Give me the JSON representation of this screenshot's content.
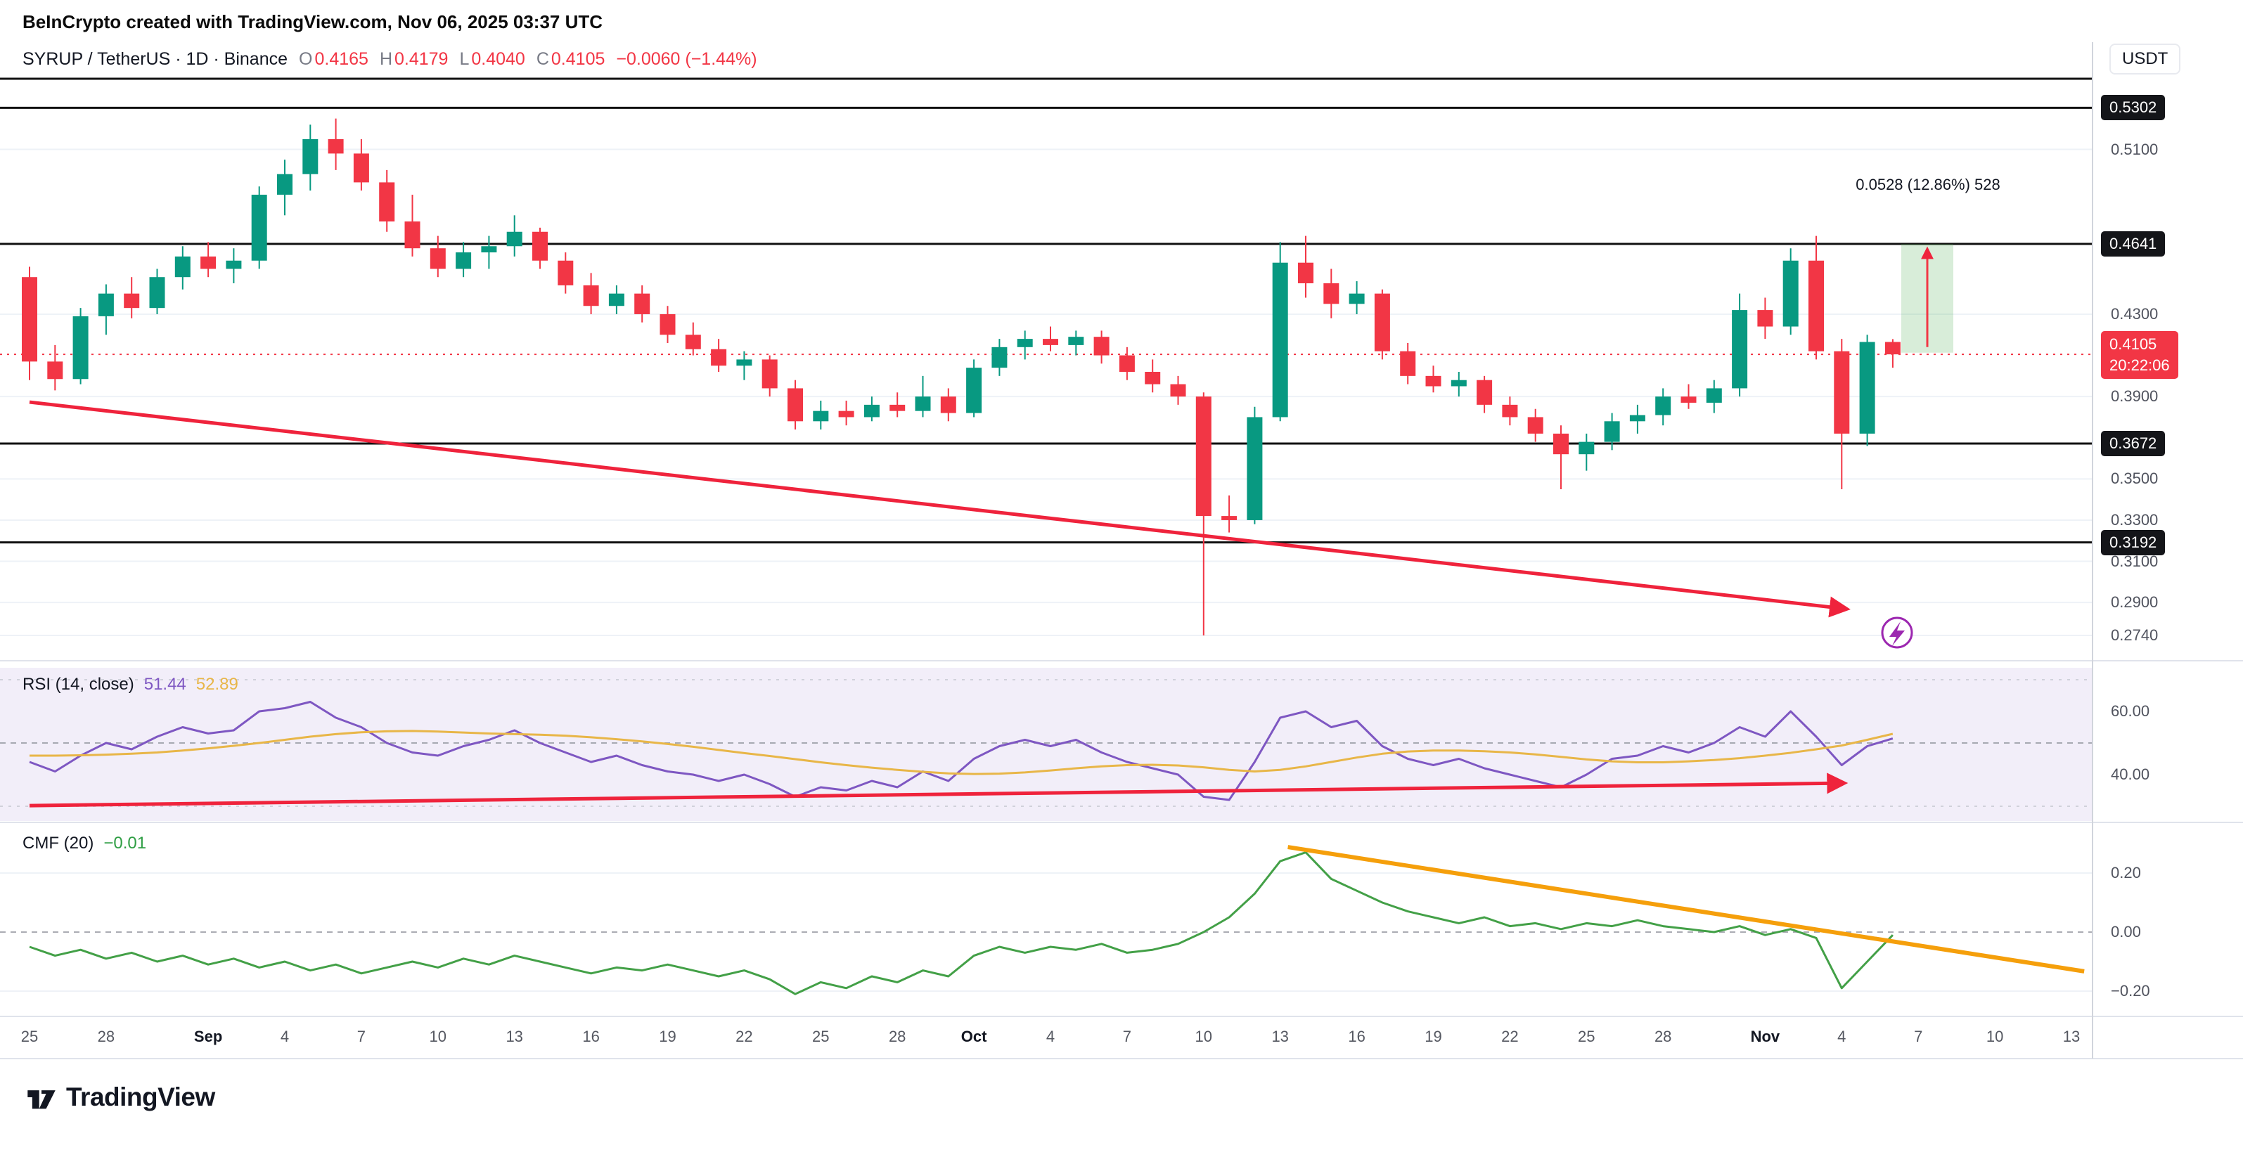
{
  "attribution": "BeInCrypto created with TradingView.com, Nov 06, 2025 03:37 UTC",
  "symbol_bar": {
    "title": "SYRUP / TetherUS · 1D · Binance",
    "o_label": "O",
    "o": "0.4165",
    "h_label": "H",
    "h": "0.4179",
    "l_label": "L",
    "l": "0.4040",
    "c_label": "C",
    "c": "0.4105",
    "change": "−0.0060 (−1.44%)"
  },
  "currency_label": "USDT",
  "price_axis": {
    "plain_labels": [
      {
        "text": "0.5100",
        "value": 0.51
      },
      {
        "text": "0.4300",
        "value": 0.43
      },
      {
        "text": "0.3900",
        "value": 0.39
      },
      {
        "text": "0.3500",
        "value": 0.35
      },
      {
        "text": "0.3300",
        "value": 0.33
      },
      {
        "text": "0.3100",
        "value": 0.31
      },
      {
        "text": "0.2900",
        "value": 0.29
      },
      {
        "text": "0.2740",
        "value": 0.274
      }
    ],
    "level_badges": [
      {
        "text": "0.5302",
        "value": 0.5302
      },
      {
        "text": "0.4641",
        "value": 0.4641
      },
      {
        "text": "0.3672",
        "value": 0.3672
      },
      {
        "text": "0.3192",
        "value": 0.3192
      }
    ],
    "last_price_badge": {
      "text": "0.4105",
      "value": 0.4105,
      "countdown": "20:22:06"
    }
  },
  "levels": [
    0.5302,
    0.4641,
    0.3672,
    0.3192
  ],
  "measurement": {
    "label": "0.0528 (12.86%) 528",
    "from_price": 0.4113,
    "to_price": 0.4641
  },
  "rsi_panel": {
    "title": "RSI (14, close)",
    "value": "51.44",
    "ma_value": "52.89",
    "axis_labels": [
      {
        "text": "60.00",
        "value": 60
      },
      {
        "text": "40.00",
        "value": 40
      }
    ]
  },
  "cmf_panel": {
    "title": "CMF (20)",
    "value": "−0.01",
    "axis_labels": [
      {
        "text": "0.20",
        "value": 0.2
      },
      {
        "text": "0.00",
        "value": 0
      },
      {
        "text": "−0.20",
        "value": -0.2
      }
    ]
  },
  "time_axis": {
    "ticks": [
      {
        "d": 0,
        "label": "25"
      },
      {
        "d": 3,
        "label": "28"
      },
      {
        "d": 7,
        "label": "Sep",
        "month": true
      },
      {
        "d": 10,
        "label": "4"
      },
      {
        "d": 13,
        "label": "7"
      },
      {
        "d": 16,
        "label": "10"
      },
      {
        "d": 19,
        "label": "13"
      },
      {
        "d": 22,
        "label": "16"
      },
      {
        "d": 25,
        "label": "19"
      },
      {
        "d": 28,
        "label": "22"
      },
      {
        "d": 31,
        "label": "25"
      },
      {
        "d": 34,
        "label": "28"
      },
      {
        "d": 37,
        "label": "Oct",
        "month": true
      },
      {
        "d": 40,
        "label": "4"
      },
      {
        "d": 43,
        "label": "7"
      },
      {
        "d": 46,
        "label": "10"
      },
      {
        "d": 49,
        "label": "13"
      },
      {
        "d": 52,
        "label": "16"
      },
      {
        "d": 55,
        "label": "19"
      },
      {
        "d": 58,
        "label": "22"
      },
      {
        "d": 61,
        "label": "25"
      },
      {
        "d": 64,
        "label": "28"
      },
      {
        "d": 68,
        "label": "Nov",
        "month": true
      },
      {
        "d": 71,
        "label": "4"
      },
      {
        "d": 74,
        "label": "7"
      },
      {
        "d": 77,
        "label": "10"
      },
      {
        "d": 80,
        "label": "13"
      }
    ]
  },
  "logo_text": "TradingView",
  "colors": {
    "up": "#089981",
    "down": "#f23645",
    "rsi": "#7e57c2",
    "rsi_ma": "#e8b648",
    "cmf": "#43a047",
    "trend_red": "#ef233c",
    "trend_orange": "#f59f0b",
    "level": "#111111",
    "rsi_bg": "rgba(126,87,194,0.10)",
    "badge_dark": "#141519",
    "lightning": "#9c27b0"
  },
  "annotations": {
    "main_trendline": {
      "d1": 0,
      "p1": 0.3873,
      "d2": 71.1,
      "p2": 0.287
    },
    "rsi_trendline": {
      "d1": 0,
      "v1": 30.2,
      "d2": 71,
      "v2": 37.3
    },
    "cmf_trendline": {
      "d1": 49.3,
      "v1": 0.288,
      "d2": 80.5,
      "v2": -0.133
    }
  },
  "chart_data": {
    "type": "candlestick",
    "title": "SYRUP / TetherUS · 1D · Binance",
    "ylabel": "Price (USDT)",
    "ylim": [
      0.274,
      0.545
    ],
    "levels": [
      0.5302,
      0.4641,
      0.3672,
      0.3192
    ],
    "last_price": 0.4105,
    "dates": [
      "Aug 25",
      "Aug 26",
      "Aug 27",
      "Aug 28",
      "Aug 29",
      "Aug 30",
      "Aug 31",
      "Sep 1",
      "Sep 2",
      "Sep 3",
      "Sep 4",
      "Sep 5",
      "Sep 6",
      "Sep 7",
      "Sep 8",
      "Sep 9",
      "Sep 10",
      "Sep 11",
      "Sep 12",
      "Sep 13",
      "Sep 14",
      "Sep 15",
      "Sep 16",
      "Sep 17",
      "Sep 18",
      "Sep 19",
      "Sep 20",
      "Sep 21",
      "Sep 22",
      "Sep 23",
      "Sep 24",
      "Sep 25",
      "Sep 26",
      "Sep 27",
      "Sep 28",
      "Sep 29",
      "Sep 30",
      "Oct 1",
      "Oct 2",
      "Oct 3",
      "Oct 4",
      "Oct 5",
      "Oct 6",
      "Oct 7",
      "Oct 8",
      "Oct 9",
      "Oct 10",
      "Oct 11",
      "Oct 12",
      "Oct 13",
      "Oct 14",
      "Oct 15",
      "Oct 16",
      "Oct 17",
      "Oct 18",
      "Oct 19",
      "Oct 20",
      "Oct 21",
      "Oct 22",
      "Oct 23",
      "Oct 24",
      "Oct 25",
      "Oct 26",
      "Oct 27",
      "Oct 28",
      "Oct 29",
      "Oct 30",
      "Oct 31",
      "Nov 1",
      "Nov 2",
      "Nov 3",
      "Nov 4",
      "Nov 5",
      "Nov 6"
    ],
    "ohlc": [
      [
        0.448,
        0.453,
        0.398,
        0.407
      ],
      [
        0.407,
        0.415,
        0.393,
        0.3985
      ],
      [
        0.3985,
        0.433,
        0.396,
        0.429
      ],
      [
        0.429,
        0.4445,
        0.42,
        0.44
      ],
      [
        0.44,
        0.448,
        0.428,
        0.433
      ],
      [
        0.433,
        0.452,
        0.43,
        0.448
      ],
      [
        0.448,
        0.463,
        0.442,
        0.458
      ],
      [
        0.458,
        0.465,
        0.448,
        0.452
      ],
      [
        0.452,
        0.462,
        0.445,
        0.456
      ],
      [
        0.456,
        0.492,
        0.452,
        0.488
      ],
      [
        0.488,
        0.505,
        0.478,
        0.498
      ],
      [
        0.498,
        0.522,
        0.49,
        0.515
      ],
      [
        0.515,
        0.525,
        0.5,
        0.508
      ],
      [
        0.508,
        0.515,
        0.49,
        0.494
      ],
      [
        0.494,
        0.5,
        0.47,
        0.475
      ],
      [
        0.475,
        0.488,
        0.458,
        0.462
      ],
      [
        0.462,
        0.468,
        0.448,
        0.452
      ],
      [
        0.452,
        0.465,
        0.448,
        0.46
      ],
      [
        0.46,
        0.468,
        0.452,
        0.463
      ],
      [
        0.463,
        0.478,
        0.458,
        0.47
      ],
      [
        0.47,
        0.472,
        0.452,
        0.456
      ],
      [
        0.456,
        0.46,
        0.44,
        0.444
      ],
      [
        0.444,
        0.45,
        0.43,
        0.434
      ],
      [
        0.434,
        0.444,
        0.43,
        0.44
      ],
      [
        0.44,
        0.444,
        0.426,
        0.43
      ],
      [
        0.43,
        0.434,
        0.416,
        0.42
      ],
      [
        0.42,
        0.426,
        0.41,
        0.413
      ],
      [
        0.413,
        0.418,
        0.402,
        0.405
      ],
      [
        0.405,
        0.412,
        0.398,
        0.408
      ],
      [
        0.408,
        0.41,
        0.39,
        0.394
      ],
      [
        0.394,
        0.398,
        0.374,
        0.378
      ],
      [
        0.378,
        0.388,
        0.374,
        0.383
      ],
      [
        0.383,
        0.388,
        0.376,
        0.38
      ],
      [
        0.38,
        0.39,
        0.378,
        0.386
      ],
      [
        0.386,
        0.392,
        0.38,
        0.383
      ],
      [
        0.383,
        0.4,
        0.38,
        0.39
      ],
      [
        0.39,
        0.394,
        0.378,
        0.382
      ],
      [
        0.382,
        0.408,
        0.38,
        0.404
      ],
      [
        0.404,
        0.418,
        0.4,
        0.414
      ],
      [
        0.414,
        0.422,
        0.408,
        0.418
      ],
      [
        0.418,
        0.424,
        0.412,
        0.415
      ],
      [
        0.415,
        0.422,
        0.41,
        0.419
      ],
      [
        0.419,
        0.422,
        0.406,
        0.41
      ],
      [
        0.41,
        0.414,
        0.398,
        0.402
      ],
      [
        0.402,
        0.408,
        0.392,
        0.396
      ],
      [
        0.396,
        0.4,
        0.386,
        0.39
      ],
      [
        0.39,
        0.392,
        0.274,
        0.332
      ],
      [
        0.332,
        0.342,
        0.324,
        0.33
      ],
      [
        0.33,
        0.385,
        0.328,
        0.38
      ],
      [
        0.38,
        0.465,
        0.378,
        0.455
      ],
      [
        0.455,
        0.468,
        0.438,
        0.445
      ],
      [
        0.445,
        0.452,
        0.428,
        0.435
      ],
      [
        0.435,
        0.446,
        0.43,
        0.44
      ],
      [
        0.44,
        0.442,
        0.408,
        0.412
      ],
      [
        0.412,
        0.416,
        0.396,
        0.4
      ],
      [
        0.4,
        0.405,
        0.392,
        0.395
      ],
      [
        0.395,
        0.402,
        0.39,
        0.398
      ],
      [
        0.398,
        0.4,
        0.382,
        0.386
      ],
      [
        0.386,
        0.39,
        0.376,
        0.38
      ],
      [
        0.38,
        0.384,
        0.368,
        0.372
      ],
      [
        0.372,
        0.376,
        0.345,
        0.362
      ],
      [
        0.362,
        0.372,
        0.354,
        0.368
      ],
      [
        0.368,
        0.382,
        0.364,
        0.378
      ],
      [
        0.378,
        0.386,
        0.372,
        0.381
      ],
      [
        0.381,
        0.394,
        0.376,
        0.39
      ],
      [
        0.39,
        0.396,
        0.384,
        0.387
      ],
      [
        0.387,
        0.398,
        0.382,
        0.394
      ],
      [
        0.394,
        0.44,
        0.39,
        0.432
      ],
      [
        0.432,
        0.438,
        0.418,
        0.424
      ],
      [
        0.424,
        0.462,
        0.42,
        0.456
      ],
      [
        0.456,
        0.468,
        0.408,
        0.412
      ],
      [
        0.412,
        0.418,
        0.345,
        0.372
      ],
      [
        0.372,
        0.42,
        0.366,
        0.4165
      ],
      [
        0.4165,
        0.4179,
        0.404,
        0.4105
      ]
    ],
    "rsi": [
      44,
      41,
      46,
      50,
      48,
      52,
      55,
      53,
      54,
      60,
      61,
      63,
      58,
      55,
      50,
      47,
      46,
      49,
      51,
      54,
      50,
      47,
      44,
      46,
      43,
      41,
      40,
      38,
      40,
      37,
      33,
      36,
      35,
      38,
      36,
      41,
      38,
      45,
      49,
      51,
      49,
      51,
      47,
      44,
      42,
      40,
      33,
      32,
      44,
      58,
      60,
      55,
      57,
      49,
      45,
      43,
      45,
      42,
      40,
      38,
      36,
      40,
      45,
      46,
      49,
      47,
      50,
      55,
      52,
      60,
      52,
      43,
      49,
      51.44
    ],
    "rsi_ma": [
      46,
      46,
      46.1,
      46.3,
      46.6,
      47,
      47.6,
      48.3,
      49.1,
      50,
      51,
      52,
      52.8,
      53.4,
      53.7,
      53.8,
      53.6,
      53.3,
      53,
      52.8,
      52.6,
      52.3,
      51.8,
      51.2,
      50.5,
      49.7,
      48.8,
      47.8,
      46.8,
      45.9,
      44.9,
      43.9,
      43,
      42.2,
      41.5,
      40.9,
      40.4,
      40.2,
      40.3,
      40.7,
      41.3,
      42,
      42.6,
      43,
      43.1,
      42.9,
      42.3,
      41.5,
      41,
      41.5,
      42.6,
      44,
      45.4,
      46.6,
      47.3,
      47.6,
      47.6,
      47.4,
      47,
      46.4,
      45.6,
      44.8,
      44.2,
      43.9,
      43.9,
      44.2,
      44.6,
      45.2,
      46,
      46.9,
      48,
      49.2,
      51,
      52.89
    ],
    "cmf": [
      -0.05,
      -0.08,
      -0.06,
      -0.09,
      -0.07,
      -0.1,
      -0.08,
      -0.11,
      -0.09,
      -0.12,
      -0.1,
      -0.13,
      -0.11,
      -0.14,
      -0.12,
      -0.1,
      -0.12,
      -0.09,
      -0.11,
      -0.08,
      -0.1,
      -0.12,
      -0.14,
      -0.12,
      -0.13,
      -0.11,
      -0.13,
      -0.15,
      -0.13,
      -0.16,
      -0.21,
      -0.17,
      -0.19,
      -0.15,
      -0.17,
      -0.13,
      -0.15,
      -0.08,
      -0.05,
      -0.07,
      -0.05,
      -0.06,
      -0.04,
      -0.07,
      -0.06,
      -0.04,
      0.0,
      0.05,
      0.13,
      0.24,
      0.27,
      0.18,
      0.14,
      0.1,
      0.07,
      0.05,
      0.03,
      0.05,
      0.02,
      0.03,
      0.01,
      0.03,
      0.02,
      0.04,
      0.02,
      0.01,
      0.0,
      0.02,
      -0.01,
      0.01,
      -0.02,
      -0.19,
      -0.1,
      -0.01
    ]
  }
}
